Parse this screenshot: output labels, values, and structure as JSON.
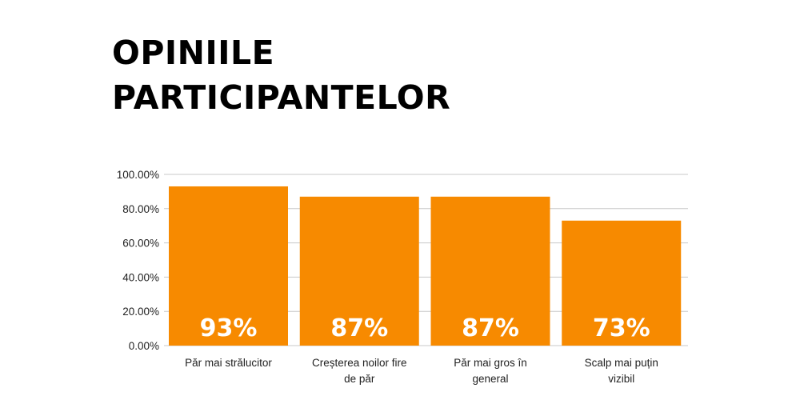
{
  "title_lines": [
    "OPINIILE",
    "PARTICIPANTELOR"
  ],
  "colors": {
    "bar": "#F78A00",
    "grid": "#C8C8C8",
    "data_label": "#FFFFFF"
  },
  "chart_data": {
    "type": "bar",
    "title": "OPINIILE PARTICIPANTELOR",
    "categories": [
      [
        "Păr mai strălucitor"
      ],
      [
        "Creșterea noilor fire",
        "de păr"
      ],
      [
        "Păr mai gros în",
        "general"
      ],
      [
        "Scalp mai puțin",
        "vizibil"
      ]
    ],
    "values": [
      0.93,
      0.87,
      0.87,
      0.73
    ],
    "data_labels": [
      "93%",
      "87%",
      "87%",
      "73%"
    ],
    "ylim": [
      0,
      1
    ],
    "yticks": [
      0,
      0.2,
      0.4,
      0.6,
      0.8,
      1.0
    ],
    "ytick_labels": [
      "0.00%",
      "20.00%",
      "40.00%",
      "60.00%",
      "80.00%",
      "100.00%"
    ],
    "grid": true,
    "legend": "none",
    "xlabel": "",
    "ylabel": ""
  }
}
